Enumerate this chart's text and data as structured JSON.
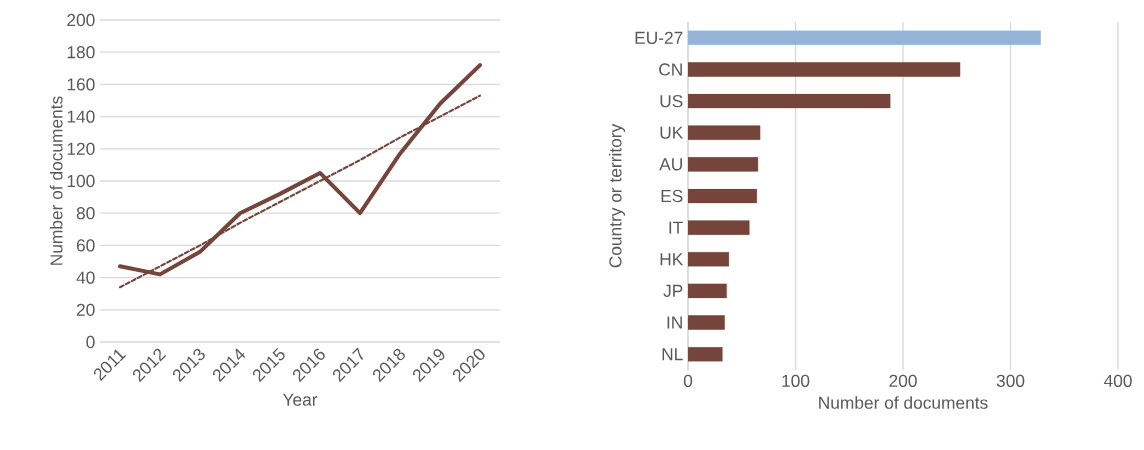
{
  "chart_data": [
    {
      "type": "line",
      "xlabel": "Year",
      "ylabel": "Number of documents",
      "categories": [
        "2011",
        "2012",
        "2013",
        "2014",
        "2015",
        "2016",
        "2017",
        "2018",
        "2019",
        "2020"
      ],
      "series": [
        {
          "color": "#75443a",
          "values": [
            47,
            42,
            56,
            80,
            92,
            105,
            80,
            117,
            148,
            172
          ],
          "line_style": "solid"
        },
        {
          "color": "#75443a",
          "values": [
            34,
            47,
            60,
            74,
            87,
            100,
            113,
            127,
            140,
            153
          ],
          "line_style": "dotted"
        }
      ],
      "ylim": [
        0,
        200
      ],
      "yticks": [
        0,
        20,
        40,
        60,
        80,
        100,
        120,
        140,
        160,
        180,
        200
      ],
      "grid": "y",
      "marker": "none"
    },
    {
      "type": "bar",
      "orientation": "horizontal",
      "xlabel": "Number of documents",
      "ylabel": "Country or territory",
      "categories": [
        "EU-27",
        "CN",
        "US",
        "UK",
        "AU",
        "ES",
        "IT",
        "HK",
        "JP",
        "IN",
        "NL"
      ],
      "values": [
        328,
        253,
        188,
        67,
        65,
        64,
        57,
        38,
        36,
        34,
        32
      ],
      "colors": [
        "#95b3d7",
        "#75443a",
        "#75443a",
        "#75443a",
        "#75443a",
        "#75443a",
        "#75443a",
        "#75443a",
        "#75443a",
        "#75443a",
        "#75443a"
      ],
      "xlim": [
        0,
        400
      ],
      "xticks": [
        0,
        100,
        200,
        300,
        400
      ],
      "grid": "x"
    }
  ]
}
